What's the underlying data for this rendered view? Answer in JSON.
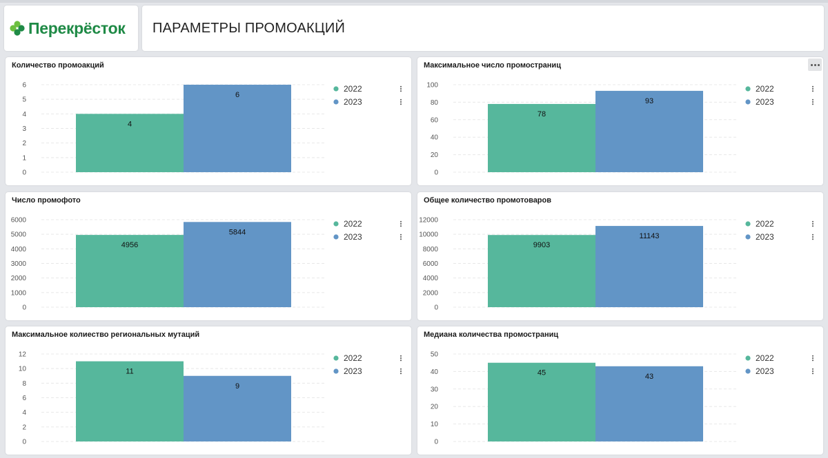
{
  "header": {
    "logo_text": "Перекрёсток",
    "page_title": "ПАРАМЕТРЫ ПРОМОАКЦИЙ"
  },
  "colors": {
    "series_2022": "#56b79c",
    "series_2023": "#6295c6",
    "brand_green": "#1f8a46",
    "logo_leaf": "#6cbf3f"
  },
  "chart_data": [
    {
      "type": "bar",
      "title": "Количество промоакций",
      "categories": [
        "2022",
        "2023"
      ],
      "values": [
        4,
        6
      ],
      "ylim": [
        0,
        6
      ],
      "yticks": [
        0,
        1,
        2,
        3,
        4,
        5,
        6
      ],
      "legend": [
        "2022",
        "2023"
      ],
      "legend_position": "right",
      "grid": true
    },
    {
      "type": "bar",
      "title": "Максимальное число промостраниц",
      "categories": [
        "2022",
        "2023"
      ],
      "values": [
        78,
        93
      ],
      "ylim": [
        0,
        100
      ],
      "yticks": [
        0,
        20,
        40,
        60,
        80,
        100
      ],
      "legend": [
        "2022",
        "2023"
      ],
      "legend_position": "right",
      "grid": true
    },
    {
      "type": "bar",
      "title": "Число промофото",
      "categories": [
        "2022",
        "2023"
      ],
      "values": [
        4956,
        5844
      ],
      "ylim": [
        0,
        6000
      ],
      "yticks": [
        0,
        1000,
        2000,
        3000,
        4000,
        5000,
        6000
      ],
      "legend": [
        "2022",
        "2023"
      ],
      "legend_position": "right",
      "grid": true
    },
    {
      "type": "bar",
      "title": "Общее количество промотоваров",
      "categories": [
        "2022",
        "2023"
      ],
      "values": [
        9903,
        11143
      ],
      "ylim": [
        0,
        12000
      ],
      "yticks": [
        0,
        2000,
        4000,
        6000,
        8000,
        10000,
        12000
      ],
      "legend": [
        "2022",
        "2023"
      ],
      "legend_position": "right",
      "grid": true
    },
    {
      "type": "bar",
      "title": "Максимальное колиество региональных мутаций",
      "categories": [
        "2022",
        "2023"
      ],
      "values": [
        11,
        9
      ],
      "ylim": [
        0,
        12
      ],
      "yticks": [
        0,
        2,
        4,
        6,
        8,
        10,
        12
      ],
      "legend": [
        "2022",
        "2023"
      ],
      "legend_position": "right",
      "grid": true
    },
    {
      "type": "bar",
      "title": "Медиана количества промостраниц",
      "categories": [
        "2022",
        "2023"
      ],
      "values": [
        45,
        43
      ],
      "ylim": [
        0,
        50
      ],
      "yticks": [
        0,
        10,
        20,
        30,
        40,
        50
      ],
      "legend": [
        "2022",
        "2023"
      ],
      "legend_position": "right",
      "grid": true
    }
  ]
}
